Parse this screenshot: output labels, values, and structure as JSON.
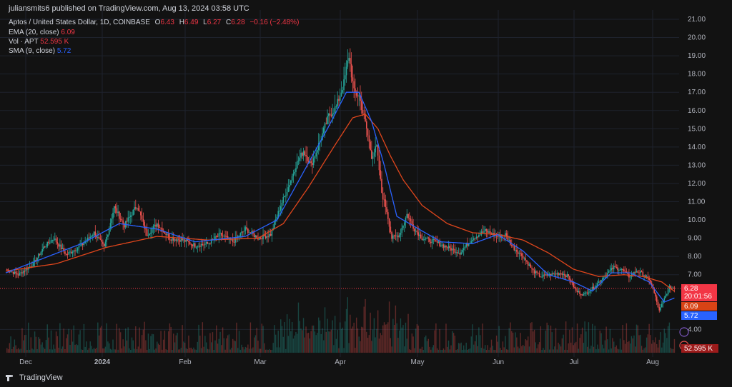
{
  "publisher_line": {
    "user": "juliansmits6",
    "rest": " published on TradingView.com, Aug 13, 2024 03:58 UTC"
  },
  "symbol": {
    "title": "Aptos / United States Dollar, 1D, COINBASE",
    "o_label": "O",
    "o_value": "6.43",
    "h_label": "H",
    "h_value": "6.49",
    "l_label": "L",
    "l_value": "6.27",
    "c_label": "C",
    "c_value": "6.28",
    "change": "−0.16 (−2.48%)"
  },
  "indicators": {
    "ema_label": "EMA (20, close)",
    "ema_value": "6.09",
    "vol_label": "Vol · APT",
    "vol_value": "52.595 K",
    "sma_label": "SMA (9, close)",
    "sma_value": "5.72"
  },
  "badges": {
    "price": "6.28",
    "countdown": "20:01:56",
    "ema": "6.09",
    "sma": "5.72",
    "volume": "52.595 K"
  },
  "footer": {
    "brand": "TradingView"
  },
  "colors": {
    "up": "#26a69a",
    "down": "#ef5350",
    "ema": "#e0461c",
    "sma": "#2962ff",
    "grid": "#1e222d"
  },
  "chart_data": {
    "type": "candlestick",
    "title": "Aptos / United States Dollar, 1D, COINBASE",
    "x_ticks": [
      "Dec",
      "2024",
      "Feb",
      "Mar",
      "Apr",
      "May",
      "Jun",
      "Jul",
      "Aug"
    ],
    "y_ticks": [
      "21.00",
      "20.00",
      "19.00",
      "18.00",
      "17.00",
      "16.00",
      "15.00",
      "14.00",
      "13.00",
      "12.00",
      "11.00",
      "10.00",
      "9.00",
      "8.00",
      "7.00",
      "4.00"
    ],
    "y_range": [
      4.0,
      21.0
    ],
    "close_path": [
      [
        0,
        7.3
      ],
      [
        10,
        7.0
      ],
      [
        22,
        7.6
      ],
      [
        30,
        8.5
      ],
      [
        38,
        9.0
      ],
      [
        48,
        8.1
      ],
      [
        60,
        8.6
      ],
      [
        70,
        9.3
      ],
      [
        78,
        8.5
      ],
      [
        86,
        10.7
      ],
      [
        94,
        9.7
      ],
      [
        104,
        10.8
      ],
      [
        112,
        9.2
      ],
      [
        120,
        9.8
      ],
      [
        130,
        9.0
      ],
      [
        140,
        8.9
      ],
      [
        150,
        8.6
      ],
      [
        160,
        8.7
      ],
      [
        170,
        9.2
      ],
      [
        180,
        8.8
      ],
      [
        190,
        9.5
      ],
      [
        200,
        9.0
      ],
      [
        210,
        9.2
      ],
      [
        218,
        10.8
      ],
      [
        224,
        11.8
      ],
      [
        230,
        13.0
      ],
      [
        236,
        13.8
      ],
      [
        242,
        13.0
      ],
      [
        250,
        14.5
      ],
      [
        256,
        15.7
      ],
      [
        262,
        16.2
      ],
      [
        268,
        17.5
      ],
      [
        272,
        19.0
      ],
      [
        276,
        17.0
      ],
      [
        280,
        16.8
      ],
      [
        286,
        15.0
      ],
      [
        290,
        13.5
      ],
      [
        294,
        14.0
      ],
      [
        298,
        11.5
      ],
      [
        302,
        10.5
      ],
      [
        306,
        9.0
      ],
      [
        312,
        9.2
      ],
      [
        318,
        10.3
      ],
      [
        324,
        9.5
      ],
      [
        330,
        9.0
      ],
      [
        340,
        8.8
      ],
      [
        350,
        8.5
      ],
      [
        360,
        8.2
      ],
      [
        370,
        9.0
      ],
      [
        380,
        9.4
      ],
      [
        390,
        9.1
      ],
      [
        396,
        9.2
      ],
      [
        402,
        8.5
      ],
      [
        410,
        8.0
      ],
      [
        418,
        7.2
      ],
      [
        424,
        6.9
      ],
      [
        432,
        7.0
      ],
      [
        440,
        7.1
      ],
      [
        446,
        6.9
      ],
      [
        452,
        6.1
      ],
      [
        458,
        5.9
      ],
      [
        466,
        6.3
      ],
      [
        474,
        6.9
      ],
      [
        482,
        7.4
      ],
      [
        488,
        7.3
      ],
      [
        494,
        6.9
      ],
      [
        500,
        7.2
      ],
      [
        506,
        7.0
      ],
      [
        512,
        6.5
      ],
      [
        518,
        5.0
      ],
      [
        522,
        5.7
      ],
      [
        526,
        6.3
      ],
      [
        530,
        6.28
      ]
    ],
    "ema_path": [
      [
        0,
        7.2
      ],
      [
        40,
        7.6
      ],
      [
        80,
        8.5
      ],
      [
        120,
        9.1
      ],
      [
        160,
        8.9
      ],
      [
        200,
        9.0
      ],
      [
        220,
        9.8
      ],
      [
        240,
        11.8
      ],
      [
        260,
        14.0
      ],
      [
        275,
        15.6
      ],
      [
        285,
        15.8
      ],
      [
        295,
        15.0
      ],
      [
        305,
        13.5
      ],
      [
        315,
        12.2
      ],
      [
        330,
        10.8
      ],
      [
        350,
        9.8
      ],
      [
        370,
        9.3
      ],
      [
        390,
        9.2
      ],
      [
        410,
        8.9
      ],
      [
        430,
        8.2
      ],
      [
        450,
        7.3
      ],
      [
        470,
        6.9
      ],
      [
        490,
        7.0
      ],
      [
        505,
        6.9
      ],
      [
        520,
        6.6
      ],
      [
        530,
        6.09
      ]
    ],
    "sma_path": [
      [
        0,
        7.1
      ],
      [
        30,
        7.9
      ],
      [
        60,
        8.7
      ],
      [
        90,
        9.8
      ],
      [
        120,
        9.5
      ],
      [
        150,
        8.8
      ],
      [
        190,
        9.1
      ],
      [
        215,
        10.0
      ],
      [
        235,
        12.5
      ],
      [
        255,
        15.0
      ],
      [
        270,
        17.0
      ],
      [
        280,
        17.0
      ],
      [
        290,
        15.4
      ],
      [
        300,
        13.0
      ],
      [
        310,
        10.2
      ],
      [
        325,
        9.6
      ],
      [
        345,
        8.8
      ],
      [
        370,
        8.7
      ],
      [
        390,
        9.2
      ],
      [
        410,
        8.3
      ],
      [
        430,
        7.0
      ],
      [
        450,
        6.6
      ],
      [
        465,
        6.1
      ],
      [
        480,
        7.1
      ],
      [
        495,
        7.1
      ],
      [
        510,
        6.6
      ],
      [
        522,
        5.5
      ],
      [
        530,
        5.72
      ]
    ]
  }
}
